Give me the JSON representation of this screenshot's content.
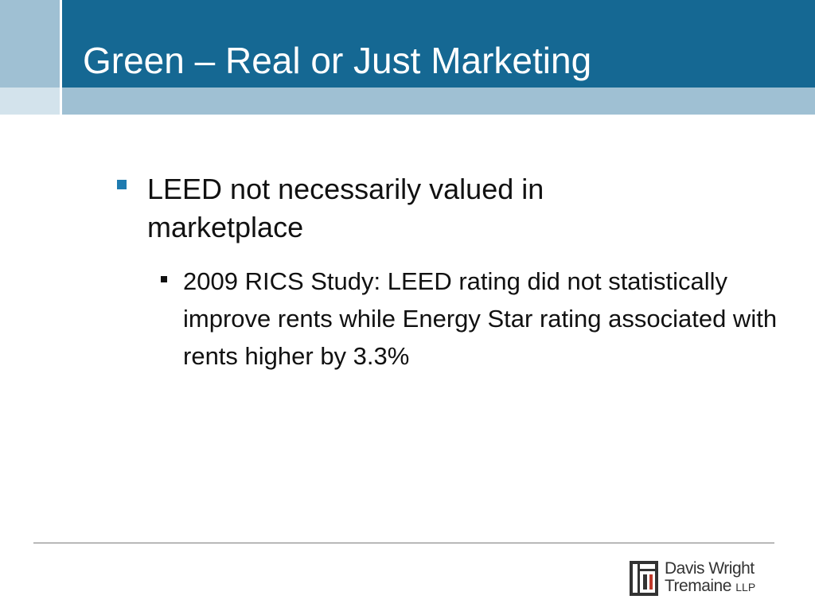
{
  "slide": {
    "title": "Green – Real or Just Marketing",
    "bullet_1": "LEED not necessarily valued in marketplace",
    "bullet_1_1": "2009 RICS Study:  LEED rating did not statistically improve rents while Energy Star rating associated with rents higher by 3.3%"
  },
  "logo": {
    "line1": "Davis Wright",
    "line2": "Tremaine",
    "suffix": "LLP"
  },
  "colors": {
    "header": "#156893",
    "band": "#9fc0d3",
    "bullet_accent": "#1f7bb0",
    "logo_red": "#c0392b"
  }
}
